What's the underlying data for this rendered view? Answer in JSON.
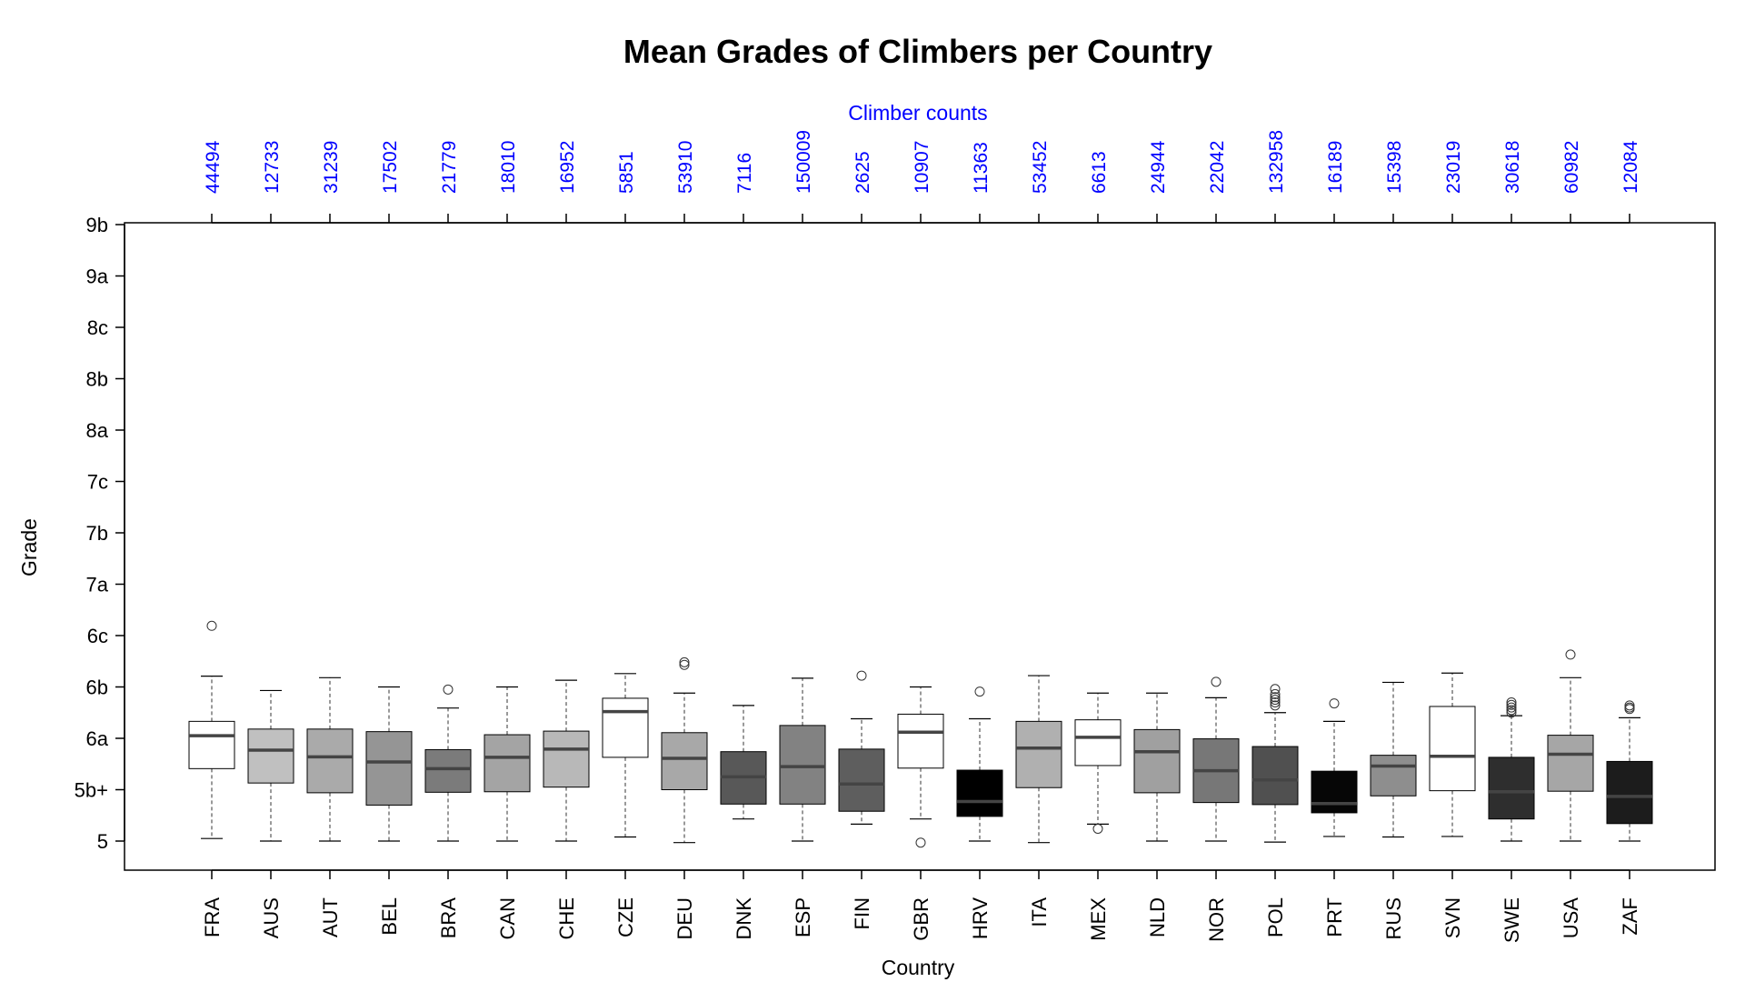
{
  "chart_data": {
    "type": "box",
    "title": "Mean Grades of Climbers per Country",
    "xlabel": "Country",
    "ylabel": "Grade",
    "top_axis_label": "Climber counts",
    "label_color": "#0000ff",
    "y_ticks": [
      "5",
      "5b+",
      "6a",
      "6b",
      "6c",
      "7a",
      "7b",
      "7c",
      "8a",
      "8b",
      "8c",
      "9a",
      "9b"
    ],
    "ylim": [
      5,
      9.5
    ],
    "grid": false,
    "categories": [
      "FRA",
      "AUS",
      "AUT",
      "BEL",
      "BRA",
      "CAN",
      "CHE",
      "CZE",
      "DEU",
      "DNK",
      "ESP",
      "FIN",
      "GBR",
      "HRV",
      "ITA",
      "MEX",
      "NLD",
      "NOR",
      "POL",
      "PRT",
      "RUS",
      "SVN",
      "SWE",
      "USA",
      "ZAF"
    ],
    "counts": [
      "44494",
      "12733",
      "31239",
      "17502",
      "21779",
      "18010",
      "16952",
      "5851",
      "53910",
      "7116",
      "150009",
      "2625",
      "10907",
      "11363",
      "53452",
      "6613",
      "24944",
      "22042",
      "132958",
      "16189",
      "15398",
      "23019",
      "30618",
      "60982",
      "12084"
    ],
    "boxes": [
      {
        "fill": "#ffffff",
        "whisker_low": 5.05,
        "q1": 6.41,
        "median": 7.05,
        "q3": 7.33,
        "whisker_high": 8.21,
        "outliers": [
          9.19
        ]
      },
      {
        "fill": "#c0c0c0",
        "whisker_low": 5.0,
        "q1": 6.13,
        "median": 6.77,
        "q3": 7.18,
        "whisker_high": 7.93,
        "outliers": []
      },
      {
        "fill": "#aaaaaa",
        "whisker_low": 5.0,
        "q1": 5.94,
        "median": 6.64,
        "q3": 7.18,
        "whisker_high": 8.18,
        "outliers": []
      },
      {
        "fill": "#959595",
        "whisker_low": 5.0,
        "q1": 5.7,
        "median": 6.54,
        "q3": 7.13,
        "whisker_high": 8.0,
        "outliers": []
      },
      {
        "fill": "#7b7b7b",
        "whisker_low": 5.0,
        "q1": 5.95,
        "median": 6.41,
        "q3": 6.78,
        "whisker_high": 7.59,
        "outliers": [
          7.95
        ]
      },
      {
        "fill": "#a4a4a4",
        "whisker_low": 5.0,
        "q1": 5.96,
        "median": 6.63,
        "q3": 7.07,
        "whisker_high": 8.0,
        "outliers": []
      },
      {
        "fill": "#b8b8b8",
        "whisker_low": 5.0,
        "q1": 6.05,
        "median": 6.79,
        "q3": 7.14,
        "whisker_high": 8.13,
        "outliers": []
      },
      {
        "fill": "#ffffff",
        "whisker_low": 5.08,
        "q1": 6.63,
        "median": 7.52,
        "q3": 7.78,
        "whisker_high": 8.26,
        "outliers": []
      },
      {
        "fill": "#a8a8a8",
        "whisker_low": 4.97,
        "q1": 6.0,
        "median": 6.61,
        "q3": 7.11,
        "whisker_high": 7.88,
        "outliers": [
          8.43,
          8.48
        ]
      },
      {
        "fill": "#585858",
        "whisker_low": 5.43,
        "q1": 5.72,
        "median": 6.25,
        "q3": 6.74,
        "whisker_high": 7.64,
        "outliers": []
      },
      {
        "fill": "#828282",
        "whisker_low": 5.0,
        "q1": 5.72,
        "median": 6.45,
        "q3": 7.25,
        "whisker_high": 8.17,
        "outliers": []
      },
      {
        "fill": "#5e5e5e",
        "whisker_low": 5.33,
        "q1": 5.58,
        "median": 6.11,
        "q3": 6.79,
        "whisker_high": 7.38,
        "outliers": [
          8.22
        ]
      },
      {
        "fill": "#ffffff",
        "whisker_low": 5.43,
        "q1": 6.42,
        "median": 7.12,
        "q3": 7.47,
        "whisker_high": 8.0,
        "outliers": [
          4.97
        ]
      },
      {
        "fill": "#000000",
        "whisker_low": 5.0,
        "q1": 5.48,
        "median": 5.77,
        "q3": 6.38,
        "whisker_high": 7.38,
        "outliers": [
          7.91
        ]
      },
      {
        "fill": "#b0b0b0",
        "whisker_low": 4.97,
        "q1": 6.04,
        "median": 6.81,
        "q3": 7.33,
        "whisker_high": 8.22,
        "outliers": []
      },
      {
        "fill": "#ffffff",
        "whisker_low": 5.33,
        "q1": 6.47,
        "median": 7.02,
        "q3": 7.36,
        "whisker_high": 7.88,
        "outliers": [
          5.24
        ]
      },
      {
        "fill": "#a0a0a0",
        "whisker_low": 5.0,
        "q1": 5.94,
        "median": 6.74,
        "q3": 7.17,
        "whisker_high": 7.88,
        "outliers": []
      },
      {
        "fill": "#777777",
        "whisker_low": 5.0,
        "q1": 5.75,
        "median": 6.37,
        "q3": 6.99,
        "whisker_high": 7.79,
        "outliers": [
          8.1
        ]
      },
      {
        "fill": "#505050",
        "whisker_low": 4.98,
        "q1": 5.71,
        "median": 6.19,
        "q3": 6.84,
        "whisker_high": 7.5,
        "outliers": [
          7.64,
          7.7,
          7.75,
          7.8,
          7.86,
          7.96
        ]
      },
      {
        "fill": "#060606",
        "whisker_low": 5.09,
        "q1": 5.55,
        "median": 5.73,
        "q3": 6.36,
        "whisker_high": 7.33,
        "outliers": [
          7.68
        ]
      },
      {
        "fill": "#8e8e8e",
        "whisker_low": 5.08,
        "q1": 5.88,
        "median": 6.46,
        "q3": 6.67,
        "whisker_high": 8.09,
        "outliers": []
      },
      {
        "fill": "#ffffff",
        "whisker_low": 5.09,
        "q1": 5.98,
        "median": 6.65,
        "q3": 7.62,
        "whisker_high": 8.27,
        "outliers": []
      },
      {
        "fill": "#2e2e2e",
        "whisker_low": 5.0,
        "q1": 5.43,
        "median": 5.96,
        "q3": 6.63,
        "whisker_high": 7.44,
        "outliers": [
          7.5,
          7.55,
          7.6,
          7.65,
          7.7
        ]
      },
      {
        "fill": "#a6a6a6",
        "whisker_low": 5.0,
        "q1": 5.97,
        "median": 6.69,
        "q3": 7.06,
        "whisker_high": 8.18,
        "outliers": [
          8.63
        ]
      },
      {
        "fill": "#1c1c1c",
        "whisker_low": 5.0,
        "q1": 5.34,
        "median": 5.87,
        "q3": 6.55,
        "whisker_high": 7.4,
        "outliers": [
          7.57,
          7.6,
          7.64
        ]
      }
    ]
  }
}
